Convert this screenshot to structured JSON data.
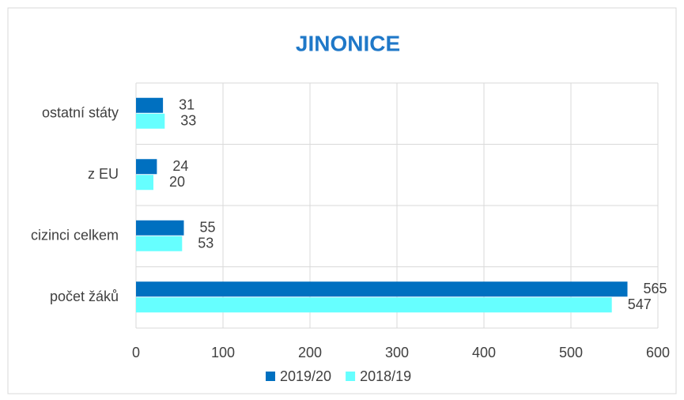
{
  "chart_data": {
    "type": "hbar",
    "title": "JINONICE",
    "categories": [
      "ostatní státy",
      "z EU",
      "cizinci celkem",
      "počet žáků"
    ],
    "series": [
      {
        "name": "2019/20",
        "color": "#0070c0",
        "values": [
          31,
          24,
          55,
          565
        ]
      },
      {
        "name": "2018/19",
        "color": "#66ffff",
        "values": [
          33,
          20,
          53,
          547
        ]
      }
    ],
    "xlim": [
      0,
      600
    ],
    "xticks": [
      0,
      100,
      200,
      300,
      400,
      500,
      600
    ],
    "grid": true,
    "legend": "bottom"
  }
}
